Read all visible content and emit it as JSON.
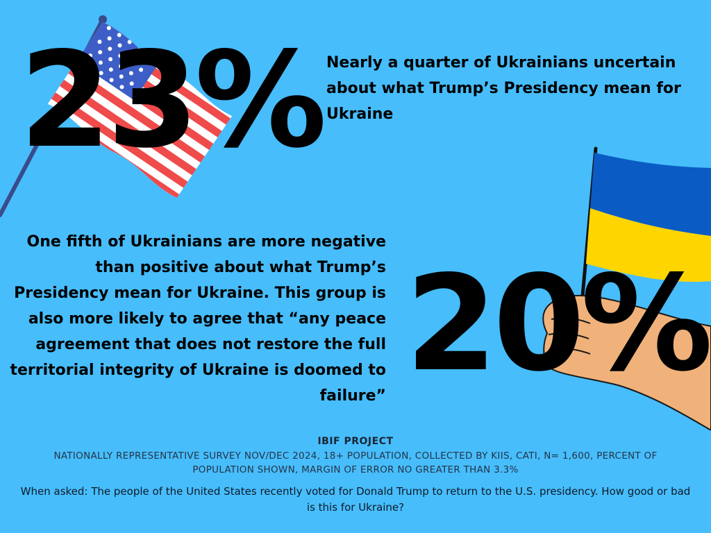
{
  "stats": {
    "top": {
      "value": "23%"
    },
    "bottom": {
      "value": "20%"
    }
  },
  "headings": {
    "top": "Nearly a quarter of Ukrainians uncertain about what Trump’s Presidency mean for Ukraine",
    "middle": "One fifth of Ukrainians are more negative than positive about what Trump’s Presidency mean for Ukraine. This group is also more likely to agree that “any peace agreement that does not restore the full territorial integrity of Ukraine is doomed to failure”"
  },
  "footer": {
    "project": "IBIF PROJECT",
    "methodology": "NATIONALLY REPRESENTATIVE SURVEY NOV/DEC 2024, 18+ POPULATION, COLLECTED BY KIIS, CATI, N= 1,600, PERCENT OF POPULATION SHOWN, MARGIN OF ERROR NO GREATER THAN 3.3%",
    "question": "When asked: The people of the United States recently voted for Donald Trump to return to the U.S. presidency. How good or bad is this for Ukraine?"
  },
  "colors": {
    "background": "#47bdfc",
    "us_red": "#ef4b4b",
    "us_blue": "#3d5ec7",
    "ua_blue": "#0a5bc4",
    "ua_yellow": "#ffd500",
    "skin": "#f0b27a",
    "pole": "#3a4b8c"
  },
  "icons": {
    "us_flag": "us-flag-icon",
    "ukraine_flag": "ukraine-flag-icon",
    "hand": "hand-icon"
  }
}
